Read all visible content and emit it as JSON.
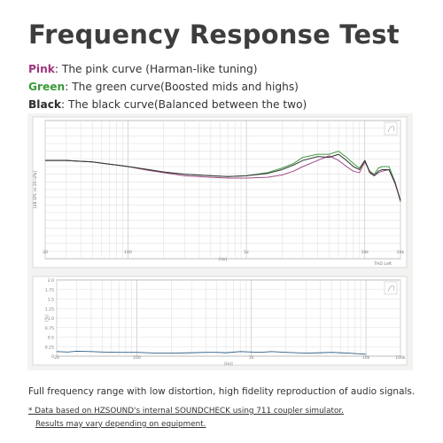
{
  "page": {
    "title": "Frequency Response Test",
    "legend": [
      {
        "key": "Pink",
        "text": ": The pink curve (Harman-like tuning)",
        "color": "#a0357d"
      },
      {
        "key": "Green",
        "text": ": The green curve(Boosted mids and highs)",
        "color": "#3a9a3a"
      },
      {
        "key": "Black",
        "text": ": The black curve(Balanced between the two)",
        "color": "#2d2d2d"
      }
    ],
    "caption": "Full frequency range with low distortion, high fidelity reproduction of audio signals.",
    "note_line1": "* Data based on HZSOUND's internal SOUNDCHECK using 711 coupler simulator.",
    "note_line2": "Results may vary depending on equipment."
  },
  "chart_data": [
    {
      "type": "line",
      "x_scale": "log",
      "xlim": [
        20,
        20000
      ],
      "ylim": [
        40,
        130
      ],
      "x_ticks": [
        "20",
        "100",
        "1k",
        "10k",
        "20k"
      ],
      "xlabel": "[Hz]",
      "ylabel": "[dB SPL re 20 uPa]",
      "corner_label": "THD Left",
      "grid": true,
      "series": [
        {
          "color": "#3f9a3f",
          "x": [
            20,
            30,
            50,
            80,
            100,
            150,
            200,
            300,
            500,
            700,
            1000,
            1500,
            2000,
            2500,
            3000,
            4000,
            5000,
            6000,
            7000,
            8000,
            9000,
            10000,
            11000,
            12000,
            13000,
            14000,
            16000,
            18000,
            20000
          ],
          "values": [
            104,
            104,
            103,
            101,
            100,
            98,
            96.5,
            95,
            94,
            93.5,
            94,
            96,
            99,
            102,
            106,
            108,
            108,
            110,
            106,
            102,
            99,
            104,
            97,
            95,
            99,
            100,
            100,
            90,
            77
          ]
        },
        {
          "color": "#a04b88",
          "x": [
            20,
            30,
            50,
            80,
            100,
            150,
            200,
            300,
            500,
            700,
            1000,
            1500,
            2000,
            2500,
            3000,
            4000,
            5000,
            6000,
            7000,
            8000,
            9000,
            10000,
            11000,
            12000,
            13000,
            14000,
            16000,
            18000,
            20000
          ],
          "values": [
            104,
            104,
            103,
            101,
            100,
            97.5,
            96,
            94,
            93,
            92.5,
            92.5,
            93,
            94.5,
            97,
            100,
            104,
            107,
            104,
            100,
            97,
            96,
            103,
            97,
            94,
            96,
            97,
            98,
            90,
            78
          ]
        },
        {
          "color": "#333333",
          "x": [
            20,
            30,
            50,
            80,
            100,
            150,
            200,
            300,
            500,
            700,
            1000,
            1500,
            2000,
            2500,
            3000,
            4000,
            5000,
            6000,
            7000,
            8000,
            9000,
            10000,
            11000,
            12000,
            13000,
            14000,
            16000,
            18000,
            20000
          ],
          "values": [
            104,
            104,
            103,
            101,
            100,
            98,
            96.5,
            95,
            94,
            93.5,
            94,
            95.5,
            98,
            101,
            104,
            106.5,
            106,
            108,
            104,
            100,
            98,
            104,
            96,
            94,
            97,
            98,
            98,
            89,
            78
          ]
        }
      ]
    },
    {
      "type": "line",
      "x_scale": "log",
      "xlim": [
        20,
        20000
      ],
      "ylim": [
        0,
        2
      ],
      "x_ticks": [
        "20",
        "100",
        "1k",
        "10k",
        "100k"
      ],
      "y_ticks": [
        "0",
        "0.25",
        "0.5",
        "0.75",
        "1.0",
        "1.25",
        "1.5",
        "1.75",
        "2.0"
      ],
      "xlabel": "[Hz]",
      "ylabel": "[%]",
      "grid": true,
      "series": [
        {
          "color": "#2f5f86",
          "x": [
            20,
            25,
            30,
            40,
            50,
            70,
            100,
            150,
            200,
            300,
            400,
            500,
            600,
            800,
            1000,
            1200,
            1500,
            2000,
            3000,
            4000,
            5000,
            7000,
            10000
          ],
          "values": [
            0.12,
            0.11,
            0.13,
            0.12,
            0.11,
            0.1,
            0.1,
            0.08,
            0.08,
            0.09,
            0.1,
            0.1,
            0.09,
            0.12,
            0.11,
            0.1,
            0.12,
            0.1,
            0.08,
            0.09,
            0.1,
            0.08,
            0.05
          ]
        }
      ]
    }
  ]
}
